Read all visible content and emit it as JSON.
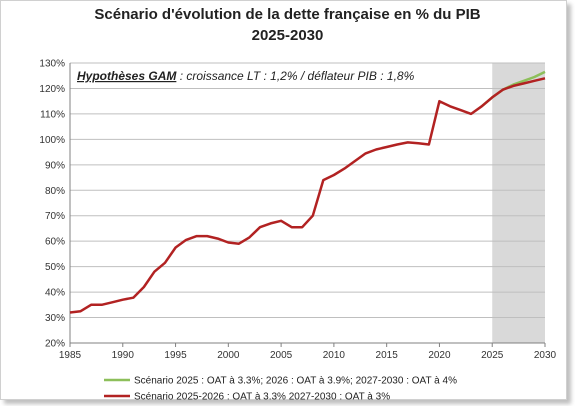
{
  "chart_data": {
    "type": "line",
    "title_line1": "Scénario d'évolution de la dette française en % du PIB",
    "title_line2": "2025-2030",
    "annotation_bold": "Hypothèses GAM",
    "annotation_rest": " : croissance LT : 1,2% / déflateur PIB : 1,8%",
    "xlim": [
      1985,
      2030
    ],
    "ylim": [
      20,
      130
    ],
    "x_ticks": [
      1985,
      1990,
      1995,
      2000,
      2005,
      2010,
      2015,
      2020,
      2025,
      2030
    ],
    "y_ticks": [
      "20%",
      "30%",
      "40%",
      "50%",
      "60%",
      "70%",
      "80%",
      "90%",
      "100%",
      "110%",
      "120%",
      "130%"
    ],
    "y_tick_values": [
      20,
      30,
      40,
      50,
      60,
      70,
      80,
      90,
      100,
      110,
      120,
      130
    ],
    "shaded_region": [
      2025,
      2030
    ],
    "grid": "horizontal",
    "series": [
      {
        "name": "Scénario 2025 : OAT à 3.3%; 2026 : OAT à 3.9%; 2027-2030 : OAT à 4%",
        "color": "#8dbf5a",
        "x": [
          2024,
          2025,
          2026,
          2027,
          2028,
          2029,
          2030
        ],
        "y": [
          113,
          116.5,
          119.5,
          121.5,
          123,
          124.5,
          126.5
        ]
      },
      {
        "name": "Scénario 2025-2026 : OAT à 3.3% 2027-2030 : OAT à 3%",
        "color": "#b22222",
        "x": [
          1985,
          1986,
          1987,
          1988,
          1989,
          1990,
          1991,
          1992,
          1993,
          1994,
          1995,
          1996,
          1997,
          1998,
          1999,
          2000,
          2001,
          2002,
          2003,
          2004,
          2005,
          2006,
          2007,
          2008,
          2009,
          2010,
          2011,
          2012,
          2013,
          2014,
          2015,
          2016,
          2017,
          2018,
          2019,
          2020,
          2021,
          2022,
          2023,
          2024,
          2025,
          2026,
          2027,
          2028,
          2029,
          2030
        ],
        "y": [
          32,
          32.5,
          35,
          35,
          36,
          37,
          37.8,
          42,
          48,
          51.5,
          57.5,
          60.5,
          62,
          62,
          61,
          59.5,
          59,
          61.5,
          65.5,
          67,
          68,
          65.5,
          65.5,
          70,
          84,
          86,
          88.5,
          91.5,
          94.5,
          96,
          97,
          98,
          98.8,
          98.5,
          98,
          115,
          113,
          111.5,
          110,
          113,
          116.5,
          119.5,
          121,
          122,
          123,
          124
        ]
      }
    ]
  }
}
